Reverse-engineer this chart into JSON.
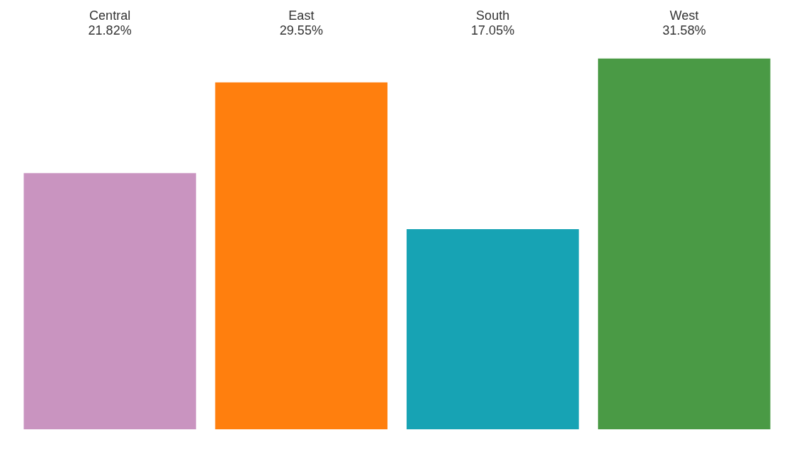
{
  "chart_data": {
    "type": "bar",
    "categories": [
      "Central",
      "East",
      "South",
      "West"
    ],
    "values": [
      21.82,
      29.55,
      17.05,
      31.58
    ],
    "colors": [
      "#c994c0",
      "#ff7f0e",
      "#17a3b4",
      "#4a9a45"
    ],
    "value_labels": [
      "21.82%",
      "29.55%",
      "17.05%",
      "31.58%"
    ],
    "legend": false
  }
}
